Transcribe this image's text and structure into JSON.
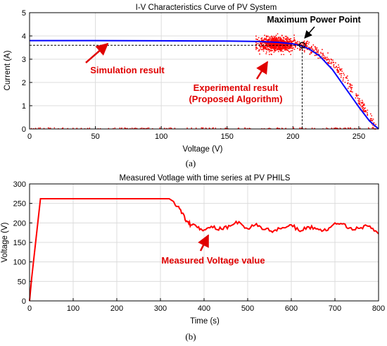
{
  "chart_data": [
    {
      "type": "scatter",
      "panel_caption": "(a)",
      "title": "I-V Characteristics Curve of PV System",
      "xlabel": "Voltage (V)",
      "ylabel": "Current (A)",
      "xlim": [
        0,
        265
      ],
      "ylim": [
        0,
        5
      ],
      "xticks": [
        0,
        50,
        100,
        150,
        200,
        250
      ],
      "yticks": [
        0,
        1,
        2,
        3,
        4,
        5
      ],
      "grid": true,
      "series": [
        {
          "role": "simulation",
          "color": "#0000ff",
          "style": "line",
          "x": [
            0,
            50,
            100,
            150,
            175,
            190,
            200,
            206,
            212,
            220,
            230,
            240,
            250,
            258,
            265
          ],
          "y": [
            3.8,
            3.8,
            3.79,
            3.78,
            3.76,
            3.72,
            3.66,
            3.58,
            3.45,
            3.15,
            2.55,
            1.75,
            0.95,
            0.35,
            0.0
          ]
        },
        {
          "role": "experimental",
          "color": "#ff0000",
          "style": "scatter",
          "cluster": {
            "x_range": [
              172,
              210
            ],
            "y_range": [
              3.2,
              4.2
            ],
            "center": [
              188,
              3.65
            ]
          },
          "tail_x": [
            205,
            210,
            215,
            220,
            225,
            230,
            235,
            240,
            245,
            250,
            255,
            260,
            263
          ],
          "tail_y": [
            3.62,
            3.55,
            3.42,
            3.25,
            3.05,
            2.8,
            2.5,
            2.1,
            1.7,
            1.25,
            0.8,
            0.35,
            0.05
          ],
          "baseline_y": 0.03
        }
      ],
      "mpp": {
        "x": 207,
        "y": 3.6
      },
      "annotations": [
        {
          "text": "Maximum Power Point",
          "color": "#000000"
        },
        {
          "text": "Simulation result",
          "color": "#e00000"
        },
        {
          "text": "Experimental result",
          "color": "#e00000"
        },
        {
          "text": "(Proposed Algorithm)",
          "color": "#e00000"
        }
      ]
    },
    {
      "type": "line",
      "panel_caption": "(b)",
      "title": "Measured Votlage with time series at PV PHILS",
      "xlabel": "Time (s)",
      "ylabel": "Voltage (V)",
      "xlim": [
        0,
        800
      ],
      "ylim": [
        0,
        300
      ],
      "xticks": [
        0,
        100,
        200,
        300,
        400,
        500,
        600,
        700,
        800
      ],
      "yticks": [
        0,
        50,
        100,
        150,
        200,
        250,
        300
      ],
      "grid": true,
      "series": [
        {
          "color": "#ff0000",
          "x": [
            0,
            5,
            25,
            320,
            330,
            340,
            350,
            360,
            370,
            385,
            400,
            420,
            440,
            460,
            480,
            500,
            520,
            540,
            560,
            580,
            600,
            620,
            640,
            660,
            680,
            700,
            720,
            740,
            760,
            780,
            800
          ],
          "y": [
            0,
            60,
            262,
            262,
            255,
            242,
            225,
            205,
            195,
            188,
            182,
            188,
            184,
            192,
            203,
            185,
            198,
            183,
            180,
            188,
            195,
            178,
            190,
            185,
            180,
            200,
            198,
            182,
            188,
            192,
            172
          ]
        }
      ],
      "annotations": [
        {
          "text": "Measured Voltage value",
          "color": "#e00000"
        }
      ]
    }
  ]
}
